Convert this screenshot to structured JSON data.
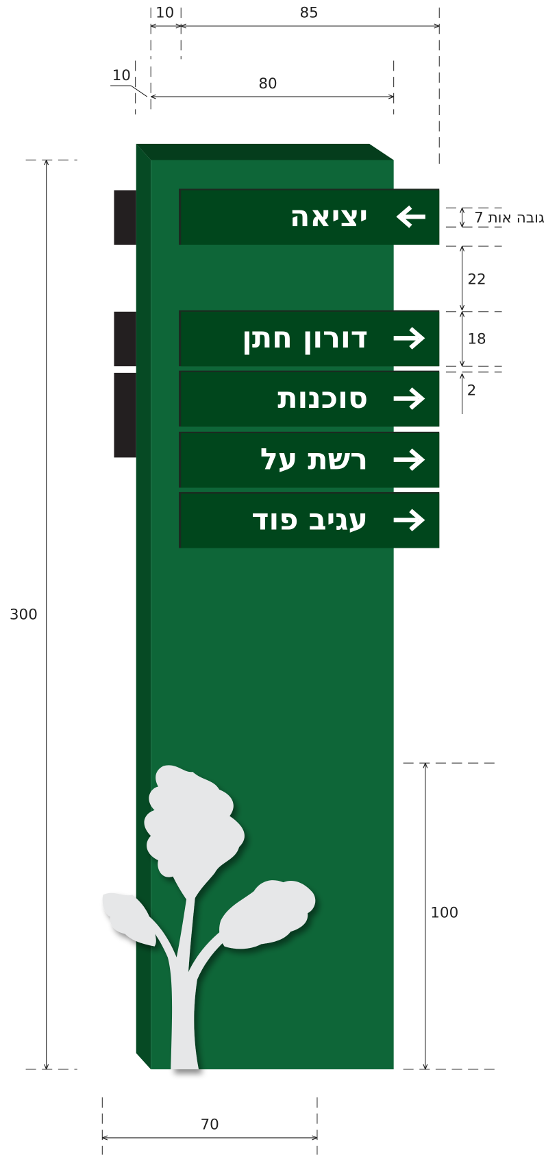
{
  "dimensions": {
    "side_offset": "10",
    "top_width": "85",
    "depth": "10",
    "front_width": "80",
    "height": "300",
    "tree_height": "100",
    "base_width": "70",
    "letter_height": "גובה אות 7",
    "spacing": "22",
    "sign_height": "18",
    "gap": "2"
  },
  "signs": [
    {
      "text": "יציאה",
      "direction": "left"
    },
    {
      "text": "דורון חתן",
      "direction": "right"
    },
    {
      "text": "סוכנות",
      "direction": "right"
    },
    {
      "text": "רשת על",
      "direction": "right"
    },
    {
      "text": "עגיב פוד",
      "direction": "right"
    }
  ]
}
